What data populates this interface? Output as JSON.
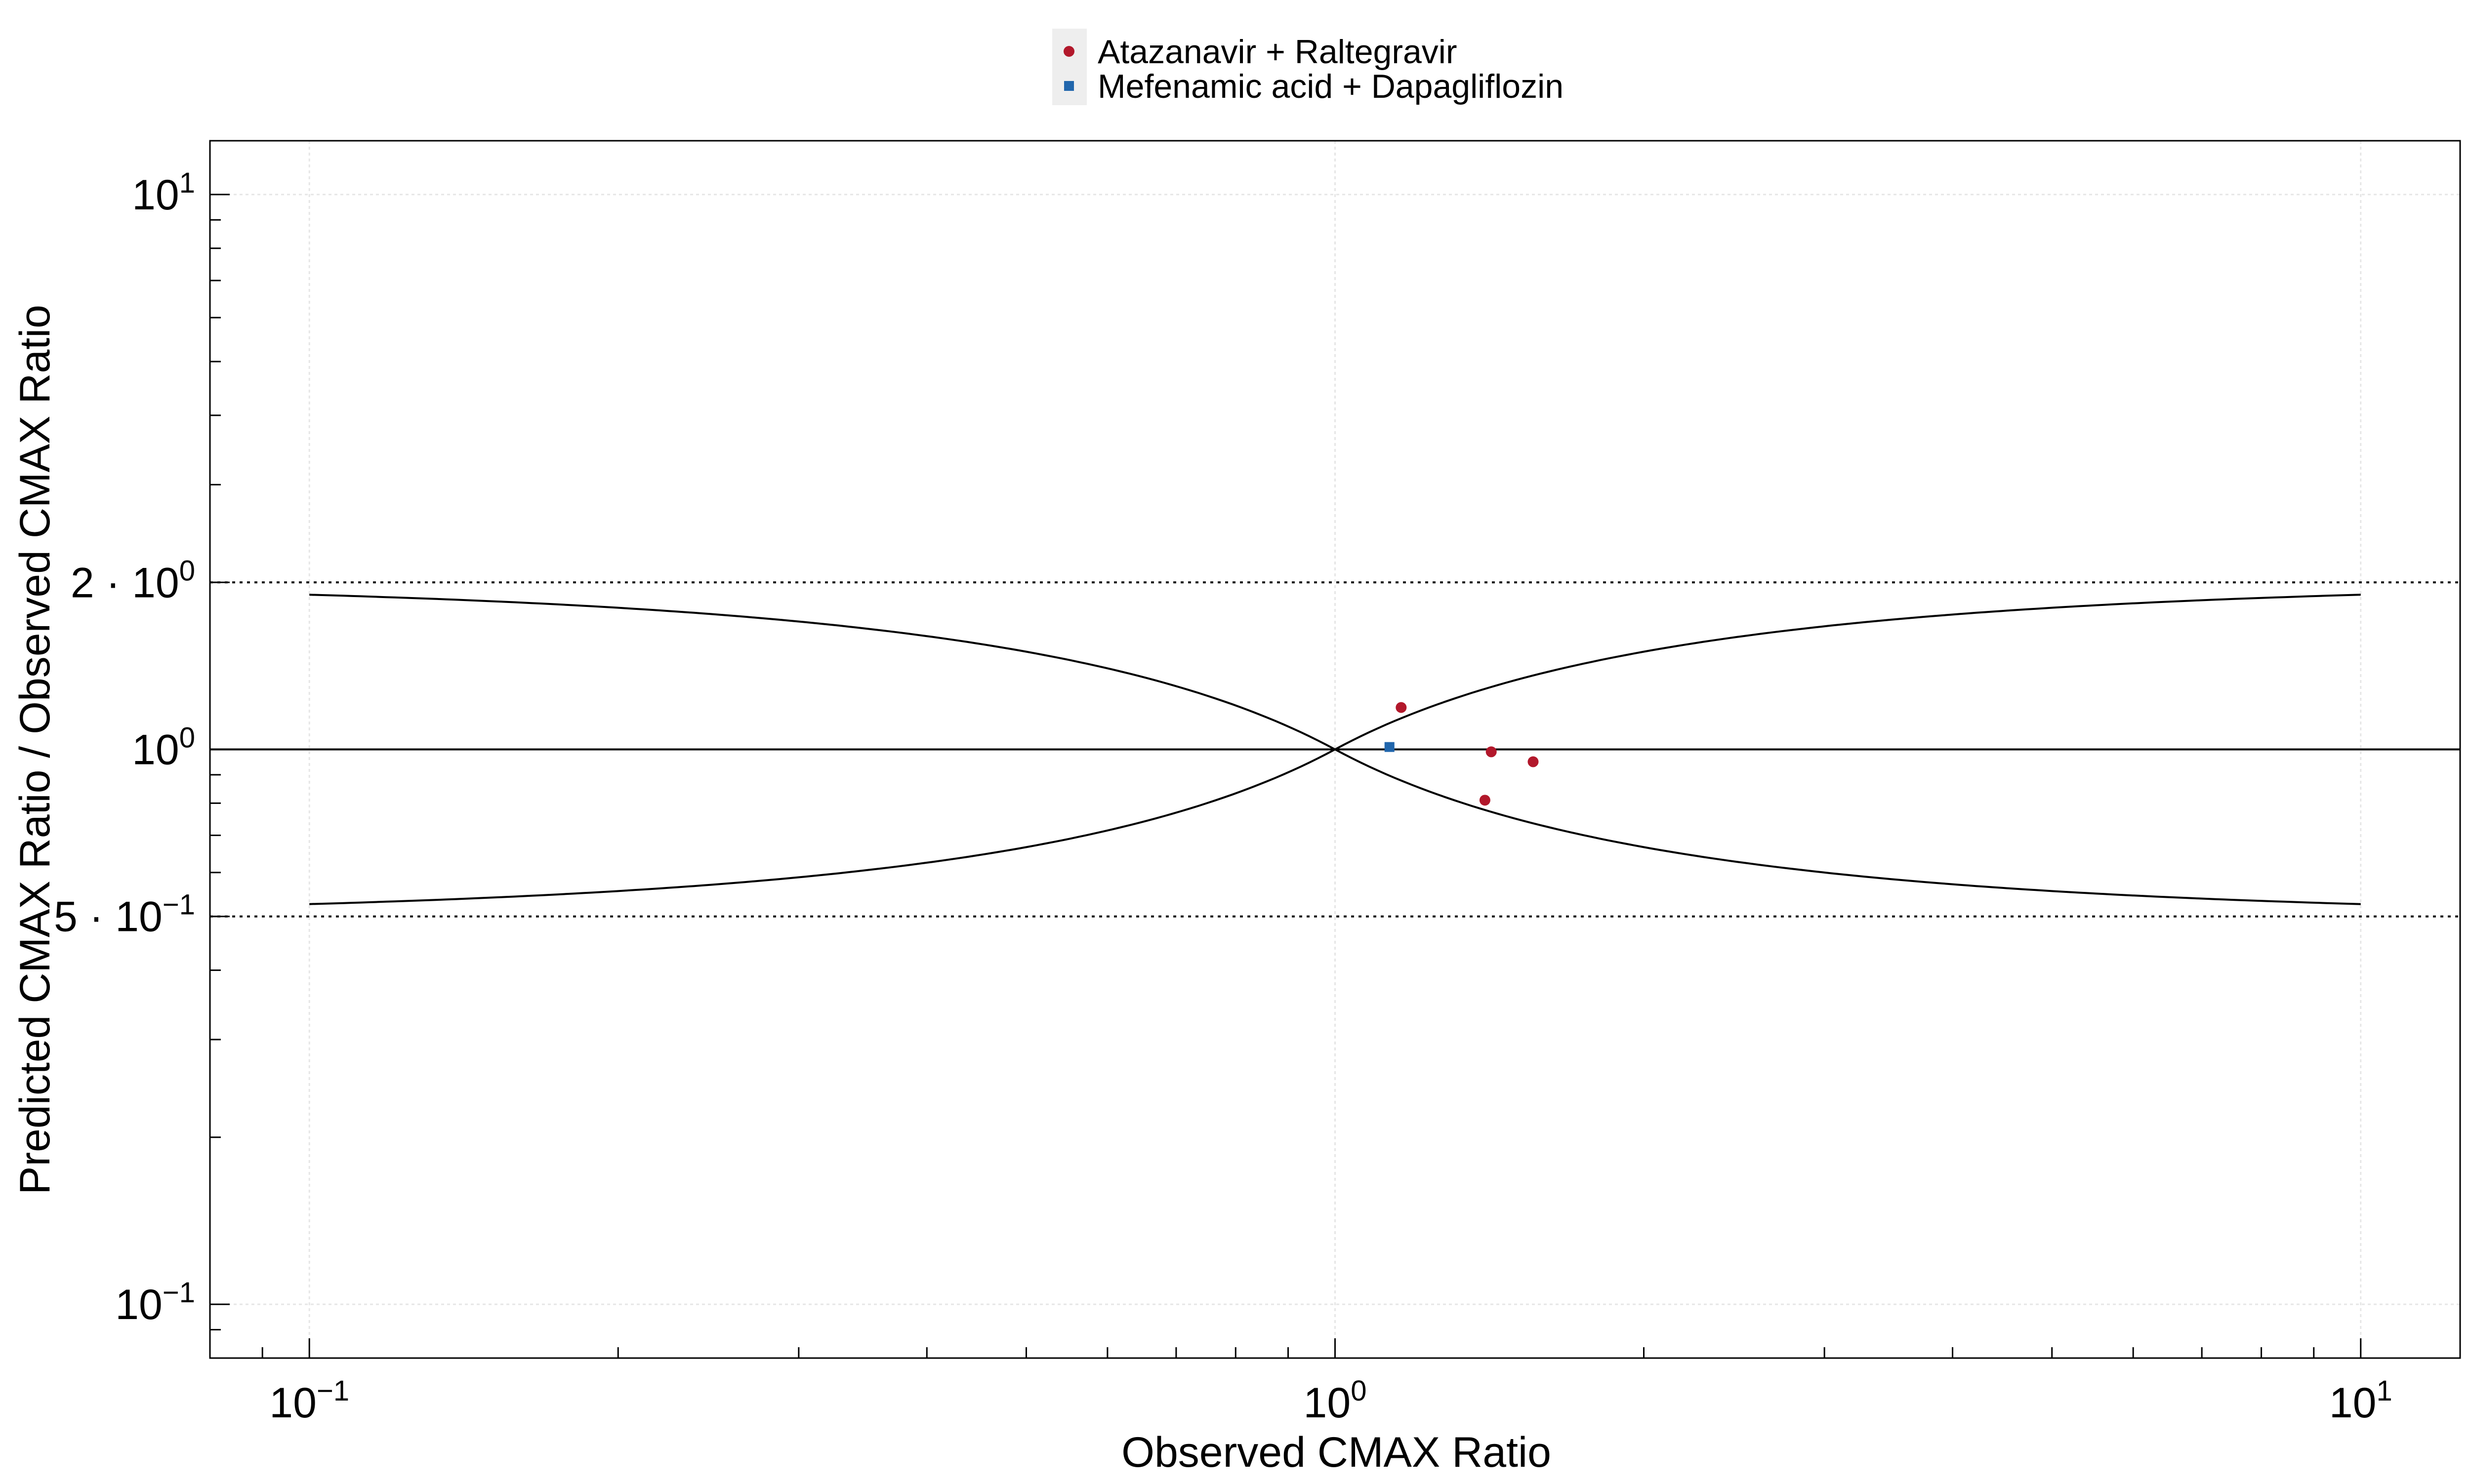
{
  "chart_data": {
    "type": "scatter",
    "title": "",
    "xlabel": "Observed CMAX Ratio",
    "ylabel": "Predicted CMAX Ratio / Observed CMAX Ratio",
    "xscale": "log",
    "yscale": "log",
    "xlim": [
      0.08,
      12.5
    ],
    "ylim": [
      0.08,
      12.5
    ],
    "grid": true,
    "legend_position": "top-center",
    "x_ticks": [
      {
        "value": 0.1,
        "base": "10",
        "exp": "−1"
      },
      {
        "value": 1,
        "base": "10",
        "exp": "0"
      },
      {
        "value": 10,
        "base": "10",
        "exp": "1"
      }
    ],
    "y_ticks": [
      {
        "value": 10,
        "base": "10",
        "exp": "1"
      },
      {
        "value": 2,
        "base": "2 · 10",
        "exp": "0"
      },
      {
        "value": 1,
        "base": "10",
        "exp": "0"
      },
      {
        "value": 0.5,
        "base": "5 · 10",
        "exp": "−1"
      },
      {
        "value": 0.1,
        "base": "10",
        "exp": "−1"
      }
    ],
    "reference_lines": [
      {
        "y": 1,
        "style": "solid"
      },
      {
        "y": 2,
        "style": "dotted"
      },
      {
        "y": 0.5,
        "style": "dotted"
      }
    ],
    "guest_limits": {
      "x_range": [
        0.1,
        10
      ],
      "delta": 1,
      "style": "solid"
    },
    "series": [
      {
        "name": "Atazanavir + Raltegravir",
        "marker": "circle",
        "color": "#b2182b",
        "points": [
          [
            1.16,
            1.19
          ],
          [
            1.42,
            0.99
          ],
          [
            1.56,
            0.95
          ],
          [
            1.4,
            0.81
          ]
        ]
      },
      {
        "name": "Mefenamic acid + Dapagliflozin",
        "marker": "square",
        "color": "#2166ac",
        "points": [
          [
            1.13,
            1.01
          ]
        ]
      }
    ]
  }
}
